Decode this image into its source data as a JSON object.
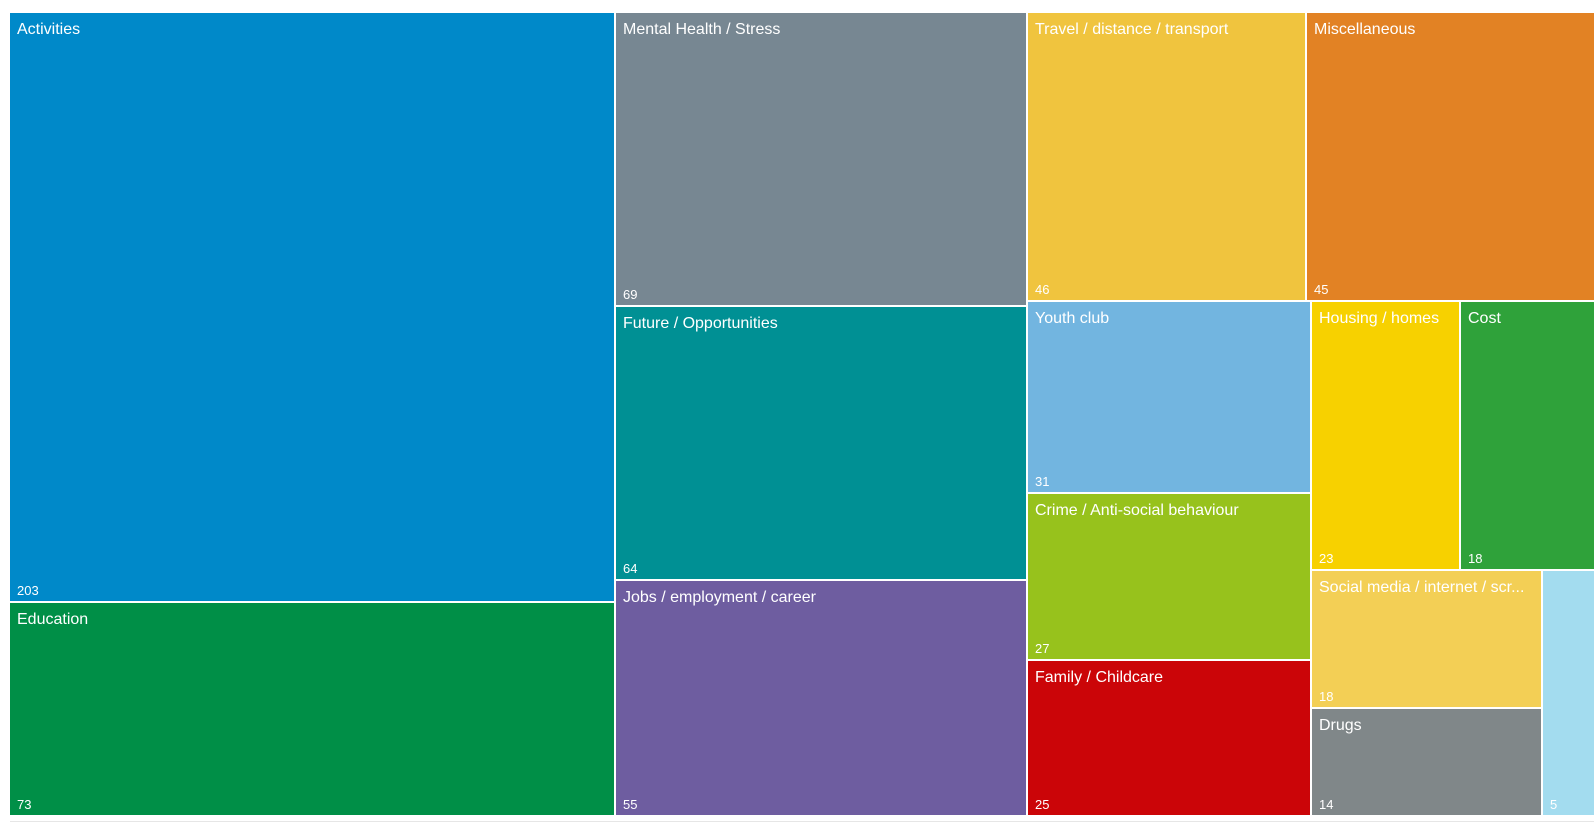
{
  "chart_data": {
    "type": "treemap",
    "items": [
      {
        "label": "Activities",
        "value": 203,
        "color": "#0089C9"
      },
      {
        "label": "Education",
        "value": 73,
        "color": "#008F47"
      },
      {
        "label": "Mental Health / Stress",
        "value": 69,
        "color": "#778792"
      },
      {
        "label": "Future / Opportunities",
        "value": 64,
        "color": "#009094"
      },
      {
        "label": "Jobs / employment / career",
        "value": 55,
        "color": "#6E5DA0"
      },
      {
        "label": "Travel / distance / transport",
        "value": 46,
        "color": "#F0C43E"
      },
      {
        "label": "Miscellaneous",
        "value": 45,
        "color": "#E28224"
      },
      {
        "label": "Youth club",
        "value": 31,
        "color": "#72B5E0"
      },
      {
        "label": "Crime / Anti-social behaviour",
        "value": 27,
        "color": "#97C21C"
      },
      {
        "label": "Family / Childcare",
        "value": 25,
        "color": "#CB0508"
      },
      {
        "label": "Housing / homes",
        "value": 23,
        "color": "#F7D100"
      },
      {
        "label": "Cost",
        "value": 18,
        "color": "#2FA23A"
      },
      {
        "label": "Social media / internet / scr...",
        "value": 18,
        "color": "#F3CF55"
      },
      {
        "label": "Drugs",
        "value": 14,
        "color": "#808789"
      },
      {
        "label": "",
        "value": 5,
        "color": "#A3DCEF"
      }
    ]
  }
}
